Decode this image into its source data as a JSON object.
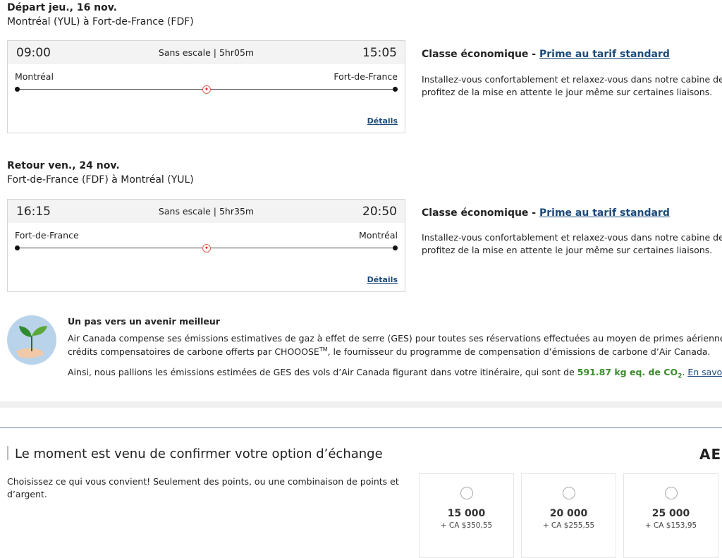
{
  "outbound": {
    "date": "Départ jeu., 16 nov.",
    "route": "Montréal (YUL) à Fort-de-France (FDF)",
    "dep_time": "09:00",
    "arr_time": "15:05",
    "stops": "Sans escale | 5hr05m",
    "origin": "Montréal",
    "dest": "Fort-de-France",
    "details": "Détails",
    "class_label": "Classe économique - ",
    "fare": "Prime au tarif standard",
    "desc1": "Installez-vous confortablement et relaxez-vous dans notre cabine de l",
    "desc2": "profitez de la mise en attente le jour même sur certaines liaisons."
  },
  "inbound": {
    "date": "Retour ven., 24 nov.",
    "route": "Fort-de-France (FDF) à Montréal (YUL)",
    "dep_time": "16:15",
    "arr_time": "20:50",
    "stops": "Sans escale | 5hr35m",
    "origin": "Fort-de-France",
    "dest": "Montréal",
    "details": "Détails",
    "class_label": "Classe économique - ",
    "fare": "Prime au tarif standard",
    "desc1": "Installez-vous confortablement et relaxez-vous dans notre cabine de l",
    "desc2": "profitez de la mise en attente le jour même sur certaines liaisons."
  },
  "eco": {
    "title": "Un pas vers un avenir meilleur",
    "p1a": "Air Canada compense ses émissions estimatives de gaz à effet de serre (GES) pour toutes ses réservations effectuées au moyen de primes aériennes Aé",
    "p1b": "crédits compensatoires de carbone offerts par CHOOOSE",
    "tm": "TM",
    "p1c": ", le fournisseur du programme de compensation d’émissions de carbone d’Air Canada.",
    "p2a": "Ainsi, nous pallions les émissions estimées de GES des vols d’Air Canada figurant dans votre itinéraire, qui sont de ",
    "amount": "591.87 kg eq. de CO",
    "sub": "2",
    "p2b": ". ",
    "more": "En savoir plus"
  },
  "exchange": {
    "title": "Le moment est venu de confirmer votre option d’échange",
    "desc1": "Choisissez ce qui vous convient! Seulement des points, ou une combinaison de points et",
    "desc2": "d’argent.",
    "logo": "AE",
    "options": [
      {
        "points": "15 000",
        "cash": "+ CA $350,55"
      },
      {
        "points": "20 000",
        "cash": "+ CA $255,55"
      },
      {
        "points": "25 000",
        "cash": "+ CA $153,95"
      }
    ]
  },
  "colors": {
    "link": "#1c4a7a",
    "green": "#3a8a2c",
    "brand_red": "#d22"
  }
}
